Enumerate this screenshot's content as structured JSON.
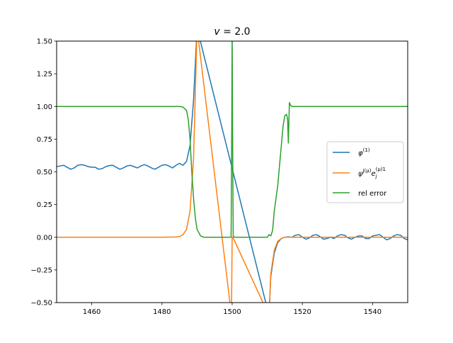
{
  "chart_data": {
    "type": "line",
    "title": "v = 2.0",
    "title_parts": {
      "var": "v",
      "rest": " = 2.0"
    },
    "xlabel": "",
    "ylabel": "",
    "xlim": [
      1450,
      1550
    ],
    "ylim": [
      -0.5,
      1.5
    ],
    "xticks": [
      1460,
      1480,
      1500,
      1520,
      1540
    ],
    "yticks": [
      -0.5,
      -0.25,
      0.0,
      0.25,
      0.5,
      0.75,
      1.0,
      1.25,
      1.5
    ],
    "ytick_labels": [
      "−0.50",
      "−0.25",
      "0.00",
      "0.25",
      "0.50",
      "0.75",
      "1.00",
      "1.25",
      "1.50"
    ],
    "xtick_labels": [
      "1460",
      "1480",
      "1500",
      "1520",
      "1540"
    ],
    "grid": false,
    "legend_position": "center-right",
    "series": [
      {
        "name": "φ(1)",
        "legend": {
          "base": "φ",
          "sup": "(1)"
        },
        "color": "#1f77b4",
        "points": [
          [
            1450,
            0.54
          ],
          [
            1451,
            0.545
          ],
          [
            1452,
            0.55
          ],
          [
            1453,
            0.535
          ],
          [
            1454,
            0.52
          ],
          [
            1455,
            0.53
          ],
          [
            1456,
            0.55
          ],
          [
            1457,
            0.555
          ],
          [
            1458,
            0.55
          ],
          [
            1459,
            0.54
          ],
          [
            1460,
            0.535
          ],
          [
            1461,
            0.535
          ],
          [
            1462,
            0.52
          ],
          [
            1463,
            0.525
          ],
          [
            1464,
            0.54
          ],
          [
            1465,
            0.548
          ],
          [
            1466,
            0.55
          ],
          [
            1467,
            0.535
          ],
          [
            1468,
            0.52
          ],
          [
            1469,
            0.53
          ],
          [
            1470,
            0.545
          ],
          [
            1471,
            0.55
          ],
          [
            1472,
            0.54
          ],
          [
            1473,
            0.53
          ],
          [
            1474,
            0.545
          ],
          [
            1475,
            0.555
          ],
          [
            1476,
            0.545
          ],
          [
            1477,
            0.53
          ],
          [
            1478,
            0.52
          ],
          [
            1479,
            0.535
          ],
          [
            1480,
            0.55
          ],
          [
            1481,
            0.555
          ],
          [
            1482,
            0.545
          ],
          [
            1483,
            0.53
          ],
          [
            1484,
            0.55
          ],
          [
            1485,
            0.565
          ],
          [
            1486,
            0.55
          ],
          [
            1487,
            0.58
          ],
          [
            1488,
            0.7
          ],
          [
            1489,
            1.05
          ],
          [
            1490,
            1.6
          ],
          [
            1510.5,
            -0.6
          ],
          [
            1511,
            -0.3
          ],
          [
            1512,
            -0.12
          ],
          [
            1513,
            -0.04
          ],
          [
            1514,
            -0.01
          ],
          [
            1515,
            0.0
          ],
          [
            1516,
            0.003
          ],
          [
            1517,
            0.0
          ],
          [
            1518,
            0.015
          ],
          [
            1519,
            0.02
          ],
          [
            1520,
            0.0
          ],
          [
            1521,
            -0.015
          ],
          [
            1522,
            -0.005
          ],
          [
            1523,
            0.015
          ],
          [
            1524,
            0.02
          ],
          [
            1525,
            0.005
          ],
          [
            1526,
            -0.015
          ],
          [
            1527,
            -0.01
          ],
          [
            1528,
            0.0
          ],
          [
            1529,
            -0.01
          ],
          [
            1530,
            0.01
          ],
          [
            1531,
            0.02
          ],
          [
            1532,
            0.015
          ],
          [
            1533,
            -0.005
          ],
          [
            1534,
            -0.015
          ],
          [
            1535,
            0.0
          ],
          [
            1536,
            0.01
          ],
          [
            1537,
            0.01
          ],
          [
            1538,
            -0.01
          ],
          [
            1539,
            -0.01
          ],
          [
            1540,
            0.01
          ],
          [
            1541,
            0.015
          ],
          [
            1542,
            0.02
          ],
          [
            1543,
            0.0
          ],
          [
            1544,
            -0.02
          ],
          [
            1545,
            -0.01
          ],
          [
            1546,
            0.01
          ],
          [
            1547,
            0.02
          ],
          [
            1548,
            0.015
          ],
          [
            1549,
            -0.01
          ],
          [
            1550,
            -0.02
          ]
        ]
      },
      {
        "name": "ψj(μ)ej(μ)1",
        "legend": {
          "base": "ψ",
          "sup": "j(μ)",
          "mid": "e",
          "sub2": "j",
          "sup2": "(μ)1"
        },
        "color": "#ff7f0e",
        "points": [
          [
            1450,
            0.0
          ],
          [
            1480,
            0.0
          ],
          [
            1484,
            0.002
          ],
          [
            1485,
            0.005
          ],
          [
            1486,
            0.02
          ],
          [
            1487,
            0.06
          ],
          [
            1488,
            0.2
          ],
          [
            1489,
            0.6
          ],
          [
            1490,
            1.6
          ],
          [
            1499.8,
            -0.6
          ],
          [
            1500,
            0.0
          ],
          [
            1500.2,
            0.0
          ],
          [
            1510.5,
            -0.6
          ],
          [
            1511,
            -0.28
          ],
          [
            1512,
            -0.1
          ],
          [
            1513,
            -0.03
          ],
          [
            1514,
            -0.01
          ],
          [
            1515,
            0.0
          ],
          [
            1550,
            0.0
          ]
        ]
      },
      {
        "name": "rel error",
        "legend": {
          "base": "rel error"
        },
        "color": "#2ca02c",
        "points": [
          [
            1450,
            1.0
          ],
          [
            1485,
            1.0
          ],
          [
            1486,
            0.995
          ],
          [
            1487,
            0.97
          ],
          [
            1487.5,
            0.9
          ],
          [
            1488,
            0.75
          ],
          [
            1488.5,
            0.5
          ],
          [
            1489,
            0.3
          ],
          [
            1489.5,
            0.15
          ],
          [
            1490,
            0.06
          ],
          [
            1491,
            0.01
          ],
          [
            1492,
            0.0
          ],
          [
            1499.7,
            0.0
          ],
          [
            1499.9,
            0.9
          ],
          [
            1500,
            1.6
          ],
          [
            1500.1,
            0.9
          ],
          [
            1500.3,
            0.01
          ],
          [
            1500.6,
            0.0
          ],
          [
            1510,
            0.0
          ],
          [
            1510.5,
            0.02
          ],
          [
            1511,
            0.01
          ],
          [
            1511.5,
            0.05
          ],
          [
            1512,
            0.2
          ],
          [
            1513,
            0.4
          ],
          [
            1514,
            0.7
          ],
          [
            1514.5,
            0.85
          ],
          [
            1515,
            0.93
          ],
          [
            1515.5,
            0.94
          ],
          [
            1515.8,
            0.9
          ],
          [
            1516,
            0.72
          ],
          [
            1516.3,
            1.03
          ],
          [
            1516.6,
            1.01
          ],
          [
            1517,
            1.0
          ],
          [
            1550,
            1.0
          ]
        ]
      }
    ]
  }
}
